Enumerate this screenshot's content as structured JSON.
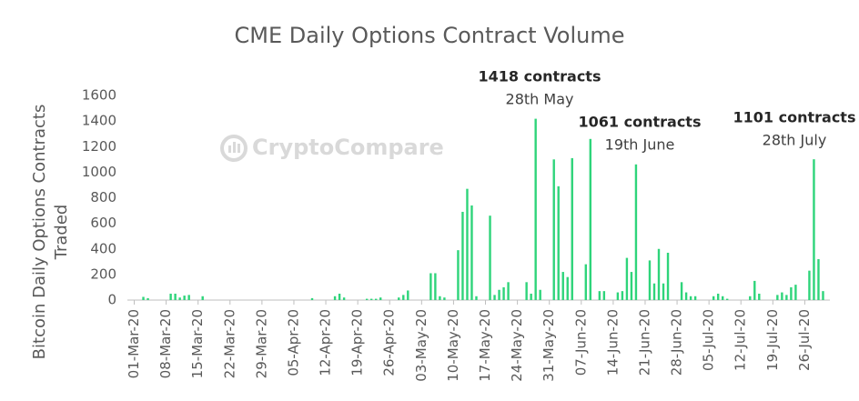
{
  "chart_data": {
    "type": "bar",
    "title": "CME Daily Options Contract Volume",
    "ylabel": [
      "Bitcoin Daily Options Contracts",
      "Traded"
    ],
    "watermark": "CryptoCompare",
    "color": "#2ed47a",
    "ylim": [
      0,
      1600
    ],
    "yticks": [
      0,
      200,
      400,
      600,
      800,
      1000,
      1200,
      1400,
      1600
    ],
    "grid": false,
    "annotations": [
      {
        "text": "1418 contracts",
        "date": "28th May"
      },
      {
        "text": "1061 contracts",
        "date": "19th June"
      },
      {
        "text": "1101 contracts",
        "date": "28th July"
      }
    ],
    "categories": [
      "01-Mar-20",
      null,
      null,
      null,
      null,
      null,
      null,
      "08-Mar-20",
      null,
      null,
      null,
      null,
      null,
      null,
      "15-Mar-20",
      null,
      null,
      null,
      null,
      null,
      null,
      "22-Mar-20",
      null,
      null,
      null,
      null,
      null,
      null,
      "29-Mar-20",
      null,
      null,
      null,
      null,
      null,
      null,
      "05-Apr-20",
      null,
      null,
      null,
      null,
      null,
      null,
      "12-Apr-20",
      null,
      null,
      null,
      null,
      null,
      null,
      "19-Apr-20",
      null,
      null,
      null,
      null,
      null,
      null,
      "26-Apr-20",
      null,
      null,
      null,
      null,
      null,
      null,
      "03-May-20",
      null,
      null,
      null,
      null,
      null,
      null,
      "10-May-20",
      null,
      null,
      null,
      null,
      null,
      null,
      "17-May-20",
      null,
      null,
      null,
      null,
      null,
      null,
      "24-May-20",
      null,
      null,
      null,
      null,
      null,
      null,
      "31-May-20",
      null,
      null,
      null,
      null,
      null,
      null,
      "07-Jun-20",
      null,
      null,
      null,
      null,
      null,
      null,
      "14-Jun-20",
      null,
      null,
      null,
      null,
      null,
      null,
      "21-Jun-20",
      null,
      null,
      null,
      null,
      null,
      null,
      "28-Jun-20",
      null,
      null,
      null,
      null,
      null,
      null,
      "05-Jul-20",
      null,
      null,
      null,
      null,
      null,
      null,
      "12-Jul-20",
      null,
      null,
      null,
      null,
      null,
      null,
      "19-Jul-20",
      null,
      null,
      null,
      null,
      null,
      null,
      "26-Jul-20",
      null,
      null,
      null,
      null,
      null
    ],
    "values": [
      0,
      0,
      25,
      15,
      0,
      0,
      0,
      0,
      50,
      50,
      20,
      35,
      40,
      0,
      0,
      30,
      0,
      0,
      0,
      0,
      0,
      0,
      0,
      0,
      0,
      0,
      0,
      0,
      0,
      0,
      0,
      0,
      0,
      0,
      0,
      0,
      0,
      0,
      0,
      15,
      0,
      0,
      0,
      0,
      30,
      50,
      20,
      0,
      0,
      0,
      0,
      10,
      10,
      10,
      20,
      0,
      0,
      0,
      20,
      40,
      75,
      0,
      0,
      0,
      0,
      210,
      210,
      30,
      20,
      0,
      0,
      390,
      690,
      870,
      740,
      30,
      0,
      0,
      660,
      40,
      80,
      100,
      140,
      0,
      0,
      0,
      140,
      50,
      1418,
      80,
      0,
      0,
      1100,
      890,
      220,
      180,
      1110,
      0,
      0,
      280,
      1260,
      0,
      70,
      70,
      0,
      0,
      60,
      70,
      330,
      220,
      1061,
      0,
      0,
      310,
      130,
      400,
      130,
      370,
      0,
      0,
      140,
      60,
      30,
      30,
      0,
      0,
      0,
      30,
      50,
      30,
      10,
      0,
      0,
      0,
      0,
      30,
      150,
      50,
      0,
      0,
      0,
      40,
      60,
      40,
      100,
      120,
      0,
      0,
      230,
      1101,
      320,
      70,
      0
    ]
  }
}
